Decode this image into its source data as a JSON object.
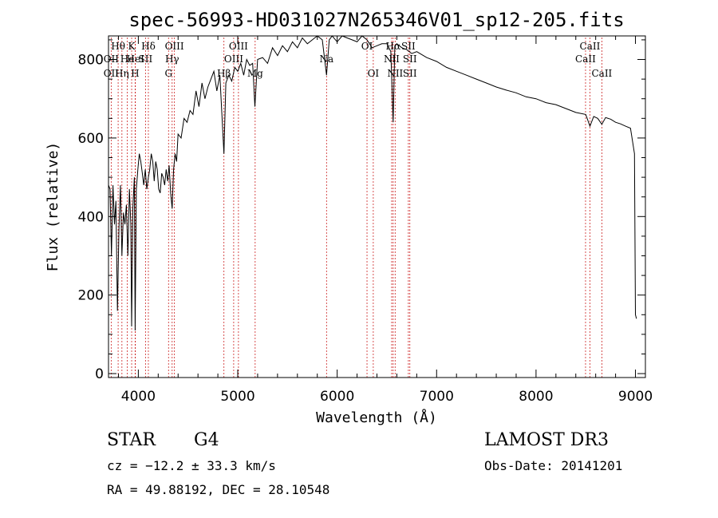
{
  "chart_data": {
    "type": "line",
    "title": "spec-56993-HD031027N265346V01_sp12-205.fits",
    "xlabel": "Wavelength (Å)",
    "ylabel": "Flux (relative)",
    "xlim": [
      3700,
      9100
    ],
    "ylim": [
      -10,
      860
    ],
    "xticks": [
      4000,
      5000,
      6000,
      7000,
      8000,
      9000
    ],
    "yticks": [
      0,
      200,
      400,
      600,
      800
    ],
    "series": [
      {
        "name": "spectrum",
        "x": [
          3700,
          3715,
          3730,
          3745,
          3760,
          3775,
          3790,
          3805,
          3820,
          3835,
          3850,
          3865,
          3880,
          3895,
          3910,
          3925,
          3933,
          3945,
          3960,
          3968,
          3980,
          3995,
          4010,
          4025,
          4040,
          4055,
          4070,
          4085,
          4101,
          4115,
          4130,
          4145,
          4160,
          4175,
          4190,
          4205,
          4220,
          4235,
          4250,
          4265,
          4280,
          4295,
          4310,
          4325,
          4340,
          4355,
          4370,
          4385,
          4400,
          4430,
          4460,
          4490,
          4520,
          4550,
          4580,
          4610,
          4640,
          4670,
          4700,
          4730,
          4760,
          4790,
          4820,
          4861,
          4880,
          4910,
          4940,
          4970,
          5000,
          5030,
          5060,
          5090,
          5120,
          5150,
          5172,
          5200,
          5250,
          5300,
          5350,
          5400,
          5450,
          5500,
          5550,
          5600,
          5650,
          5700,
          5750,
          5800,
          5850,
          5893,
          5920,
          5950,
          6000,
          6050,
          6100,
          6150,
          6200,
          6250,
          6300,
          6350,
          6400,
          6450,
          6500,
          6540,
          6563,
          6580,
          6600,
          6650,
          6700,
          6750,
          6800,
          6900,
          7000,
          7100,
          7200,
          7300,
          7400,
          7500,
          7600,
          7700,
          7800,
          7900,
          8000,
          8100,
          8200,
          8300,
          8400,
          8500,
          8542,
          8580,
          8620,
          8662,
          8700,
          8750,
          8800,
          8850,
          8900,
          8950,
          8990,
          9000,
          9010
        ],
        "y": [
          480,
          470,
          300,
          480,
          380,
          440,
          160,
          370,
          480,
          300,
          410,
          380,
          430,
          300,
          470,
          380,
          120,
          420,
          500,
          110,
          470,
          520,
          560,
          540,
          510,
          480,
          520,
          470,
          500,
          520,
          560,
          540,
          490,
          540,
          520,
          470,
          460,
          510,
          500,
          480,
          520,
          490,
          530,
          460,
          420,
          520,
          560,
          540,
          610,
          600,
          650,
          640,
          670,
          660,
          720,
          680,
          740,
          700,
          730,
          750,
          770,
          720,
          760,
          560,
          740,
          760,
          745,
          780,
          770,
          790,
          760,
          800,
          785,
          790,
          680,
          800,
          805,
          790,
          830,
          810,
          835,
          820,
          845,
          830,
          855,
          840,
          850,
          860,
          850,
          760,
          850,
          865,
          845,
          860,
          855,
          850,
          845,
          860,
          850,
          830,
          835,
          840,
          840,
          820,
          640,
          835,
          840,
          830,
          825,
          815,
          820,
          805,
          795,
          780,
          770,
          760,
          750,
          740,
          730,
          722,
          715,
          705,
          700,
          690,
          685,
          675,
          665,
          660,
          630,
          655,
          650,
          635,
          652,
          648,
          640,
          636,
          630,
          625,
          560,
          150,
          140
        ]
      }
    ],
    "line_markers": [
      {
        "name": "Hθ",
        "wavelength": 3797,
        "row": 1
      },
      {
        "name": "OII",
        "wavelength": 3727,
        "row": 2
      },
      {
        "name": "OII",
        "wavelength": 3727,
        "row": 3
      },
      {
        "name": "He",
        "wavelength": 3889,
        "row": 2
      },
      {
        "name": "Hη",
        "wavelength": 3835,
        "row": 3
      },
      {
        "name": "K",
        "wavelength": 3933,
        "row": 1
      },
      {
        "name": "HeI",
        "wavelength": 3970,
        "row": 2
      },
      {
        "name": "H",
        "wavelength": 3968,
        "row": 3
      },
      {
        "name": "Hδ",
        "wavelength": 4101,
        "row": 1
      },
      {
        "name": "SII",
        "wavelength": 4072,
        "row": 2
      },
      {
        "name": "OIII",
        "wavelength": 4363,
        "row": 1
      },
      {
        "name": "Hγ",
        "wavelength": 4340,
        "row": 2
      },
      {
        "name": "G",
        "wavelength": 4304,
        "row": 3
      },
      {
        "name": "Hβ",
        "wavelength": 4861,
        "row": 3
      },
      {
        "name": "OIII",
        "wavelength": 4959,
        "row": 2
      },
      {
        "name": "OIII",
        "wavelength": 5007,
        "row": 1
      },
      {
        "name": "Mg",
        "wavelength": 5175,
        "row": 3
      },
      {
        "name": "Na",
        "wavelength": 5893,
        "row": 2
      },
      {
        "name": "OI",
        "wavelength": 6300,
        "row": 1
      },
      {
        "name": "OI",
        "wavelength": 6363,
        "row": 3
      },
      {
        "name": "Hα",
        "wavelength": 6563,
        "row": 1
      },
      {
        "name": "NII",
        "wavelength": 6548,
        "row": 2
      },
      {
        "name": "NII",
        "wavelength": 6583,
        "row": 3
      },
      {
        "name": "SII",
        "wavelength": 6716,
        "row": 1
      },
      {
        "name": "SII",
        "wavelength": 6731,
        "row": 2
      },
      {
        "name": "SII",
        "wavelength": 6731,
        "row": 3
      },
      {
        "name": "CaII",
        "wavelength": 8542,
        "row": 1
      },
      {
        "name": "CaII",
        "wavelength": 8498,
        "row": 2
      },
      {
        "name": "CaII",
        "wavelength": 8662,
        "row": 3
      }
    ]
  },
  "info": {
    "object_class": "STAR",
    "subclass": "G4",
    "survey": "LAMOST DR3",
    "redshift": "cz = −12.2 ± 33.3 km/s",
    "obs_date": "Obs-Date: 20141201",
    "coords": "RA =  49.88192, DEC =  28.10548"
  },
  "colors": {
    "axis": "#000000",
    "spectrum": "#000000",
    "marker": "#cc2222"
  }
}
